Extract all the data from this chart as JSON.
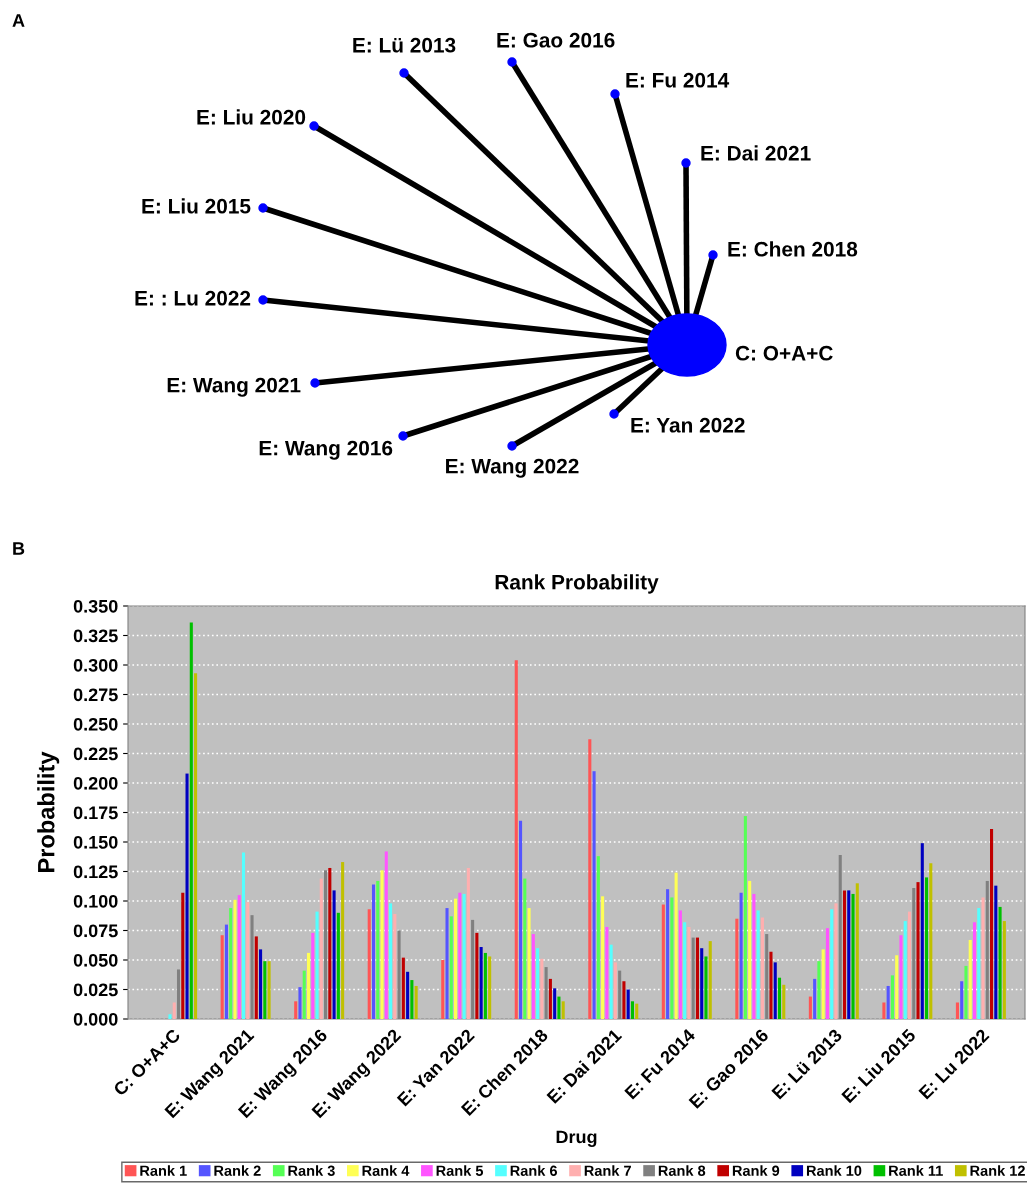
{
  "chart_data": [
    {
      "type": "other",
      "annotations": [
        "A",
        "C: O+A+C",
        "E: Chen 2018",
        "E: Dai 2021",
        "E: Fu 2014",
        "E: Gao 2016",
        "E: Lü 2013",
        "E: Liu 2020",
        "E: Liu 2015",
        "E: : Lu 2022",
        "E: Wang 2021",
        "E: Wang 2016",
        "E: Wang 2022",
        "E: Yan 2022"
      ]
    },
    {
      "type": "bar",
      "title": "Rank Probability",
      "xlabel": "Drug",
      "ylabel": "Probability",
      "annotations": [
        "B"
      ],
      "categories": [
        "C: O+A+C",
        "E: Wang 2021",
        "E: Wang 2016",
        "E: Wang 2022",
        "E: Yan 2022",
        "E: Chen 2018",
        "E: Dai 2021",
        "E: Fu 2014",
        "E: Gao 2016",
        "E: Lü 2013",
        "E: Liu 2015",
        "E: Lu 2022"
      ],
      "ylim": [
        0,
        0.35
      ],
      "yticks": [
        {
          "value": 0,
          "label": "0.000"
        },
        0.025,
        {
          "value": 0.05,
          "label": "0.050"
        },
        0.075,
        {
          "value": 0.1,
          "label": "0.100"
        },
        0.125,
        {
          "value": 0.15,
          "label": "0.150"
        },
        0.175,
        {
          "value": 0.2,
          "label": "0.200"
        },
        0.225,
        {
          "value": 0.25,
          "label": "0.250"
        },
        0.275,
        {
          "value": 0.3,
          "label": "0.300"
        },
        0.325,
        {
          "value": 0.35,
          "label": "0.350"
        }
      ],
      "grid": "y",
      "legend": "bottom",
      "series": [
        {
          "name": "Rank 1",
          "color": "#ff5555",
          "values": [
            0,
            0.071,
            0.015,
            0.093,
            0.05,
            0.304,
            0.237,
            0.097,
            0.085,
            0.019,
            0.014,
            0.014
          ]
        },
        {
          "name": "Rank 2",
          "color": "#5555ff",
          "values": [
            0,
            0.08,
            0.027,
            0.114,
            0.094,
            0.168,
            0.21,
            0.11,
            0.107,
            0.034,
            0.028,
            0.032
          ]
        },
        {
          "name": "Rank 3",
          "color": "#55ff55",
          "values": [
            0,
            0.094,
            0.041,
            0.117,
            0.087,
            0.119,
            0.138,
            0.103,
            0.172,
            0.049,
            0.037,
            0.045
          ]
        },
        {
          "name": "Rank 4",
          "color": "#ffff55",
          "values": [
            0,
            0.101,
            0.056,
            0.126,
            0.102,
            0.094,
            0.104,
            0.124,
            0.117,
            0.059,
            0.054,
            0.067
          ]
        },
        {
          "name": "Rank 5",
          "color": "#ff55ff",
          "values": [
            0,
            0.105,
            0.073,
            0.142,
            0.107,
            0.072,
            0.078,
            0.092,
            0.106,
            0.077,
            0.071,
            0.082
          ]
        },
        {
          "name": "Rank 6",
          "color": "#55ffff",
          "values": [
            0.004,
            0.141,
            0.091,
            0.098,
            0.106,
            0.06,
            0.063,
            0.082,
            0.092,
            0.093,
            0.083,
            0.094
          ]
        },
        {
          "name": "Rank 7",
          "color": "#ffafaf",
          "values": [
            0.014,
            0.099,
            0.119,
            0.089,
            0.128,
            0.051,
            0.048,
            0.078,
            0.086,
            0.098,
            0.091,
            0.103
          ]
        },
        {
          "name": "Rank 8",
          "color": "#808080",
          "values": [
            0.042,
            0.088,
            0.126,
            0.075,
            0.084,
            0.044,
            0.041,
            0.069,
            0.072,
            0.139,
            0.111,
            0.117
          ]
        },
        {
          "name": "Rank 9",
          "color": "#c00000",
          "values": [
            0.107,
            0.07,
            0.128,
            0.052,
            0.073,
            0.034,
            0.032,
            0.069,
            0.057,
            0.109,
            0.116,
            0.161
          ]
        },
        {
          "name": "Rank 10",
          "color": "#0000c0",
          "values": [
            0.208,
            0.059,
            0.109,
            0.04,
            0.061,
            0.026,
            0.025,
            0.06,
            0.048,
            0.109,
            0.149,
            0.113
          ]
        },
        {
          "name": "Rank 11",
          "color": "#00c000",
          "values": [
            0.336,
            0.049,
            0.09,
            0.033,
            0.056,
            0.019,
            0.015,
            0.053,
            0.035,
            0.106,
            0.12,
            0.095
          ]
        },
        {
          "name": "Rank 12",
          "color": "#c0c000",
          "values": [
            0.293,
            0.049,
            0.133,
            0.028,
            0.053,
            0.015,
            0.013,
            0.066,
            0.029,
            0.115,
            0.132,
            0.083
          ]
        }
      ]
    }
  ]
}
